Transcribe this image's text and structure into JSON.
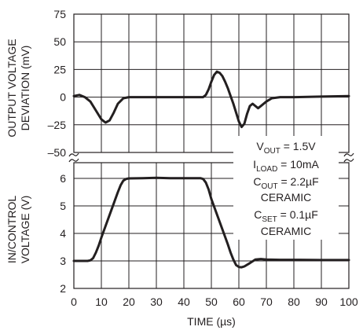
{
  "chart_data": {
    "type": "line",
    "xlabel": "TIME (µs)",
    "xlim": [
      0,
      100
    ],
    "xticks": [
      "0",
      "10",
      "20",
      "30",
      "40",
      "50",
      "60",
      "70",
      "80",
      "90",
      "100"
    ],
    "panels": [
      {
        "name": "output",
        "ylabel_lines": [
          "OUTPUT VOLTAGE",
          "DEVIATION (mV)"
        ],
        "ylim": [
          -50,
          75
        ],
        "yticks": [
          "75",
          "50",
          "25",
          "0",
          "–25",
          "–50"
        ],
        "series": [
          {
            "x": [
              0,
              2,
              4,
              6,
              8,
              10,
              11.5,
              13,
              14.5,
              16,
              18,
              20,
              30,
              40,
              47,
              48,
              49,
              50,
              51,
              52,
              53,
              54,
              55,
              56,
              57,
              58,
              59,
              60,
              61,
              62,
              63,
              64,
              65,
              66,
              67,
              68,
              70,
              72,
              75,
              80,
              90,
              100
            ],
            "y": [
              1,
              2,
              0,
              -4,
              -12,
              -20,
              -23,
              -21,
              -14,
              -6,
              -1,
              0,
              0,
              0,
              0,
              2,
              7,
              14,
              20,
              23,
              22,
              19,
              14,
              8,
              1,
              -6,
              -14,
              -22,
              -27,
              -24,
              -15,
              -8,
              -6,
              -8,
              -10,
              -8,
              -4,
              -1,
              0,
              0,
              0.5,
              1
            ]
          }
        ]
      },
      {
        "name": "control",
        "ylabel_lines": [
          "IN/CONTROL",
          "VOLTAGE (V)"
        ],
        "ylim": [
          2,
          6
        ],
        "yticks": [
          "6",
          "5",
          "4",
          "3",
          "2"
        ],
        "series": [
          {
            "x": [
              0,
              2,
              5,
              6,
              7,
              8,
              9,
              10,
              12,
              14,
              16,
              17,
              18,
              19,
              20,
              25,
              30,
              35,
              40,
              44,
              46,
              47,
              48,
              49,
              50,
              52,
              54,
              56,
              57,
              58,
              59,
              60,
              61,
              62,
              64,
              66,
              68,
              70,
              75,
              80,
              90,
              100
            ],
            "y": [
              3,
              3,
              3,
              3.02,
              3.1,
              3.3,
              3.55,
              3.85,
              4.4,
              4.95,
              5.5,
              5.75,
              5.92,
              5.98,
              6,
              6.01,
              6.02,
              6.01,
              6.01,
              6.01,
              6.01,
              5.98,
              5.85,
              5.6,
              5.25,
              4.7,
              4.15,
              3.6,
              3.3,
              3.05,
              2.85,
              2.78,
              2.77,
              2.8,
              2.92,
              3.05,
              3.07,
              3.05,
              3.04,
              3.04,
              3.03,
              3.03
            ]
          }
        ]
      }
    ],
    "annotation_lines": [
      {
        "main": "V",
        "sub": "OUT",
        "rest": " = 1.5V"
      },
      {
        "main": "I",
        "sub": "LOAD",
        "rest": " = 10mA"
      },
      {
        "main": "C",
        "sub": "OUT",
        "rest": " = 2.2µF"
      },
      {
        "main": "CERAMIC",
        "sub": "",
        "rest": ""
      },
      {
        "main": "C",
        "sub": "SET",
        "rest": " = 0.1µF"
      },
      {
        "main": "CERAMIC",
        "sub": "",
        "rest": ""
      }
    ]
  }
}
